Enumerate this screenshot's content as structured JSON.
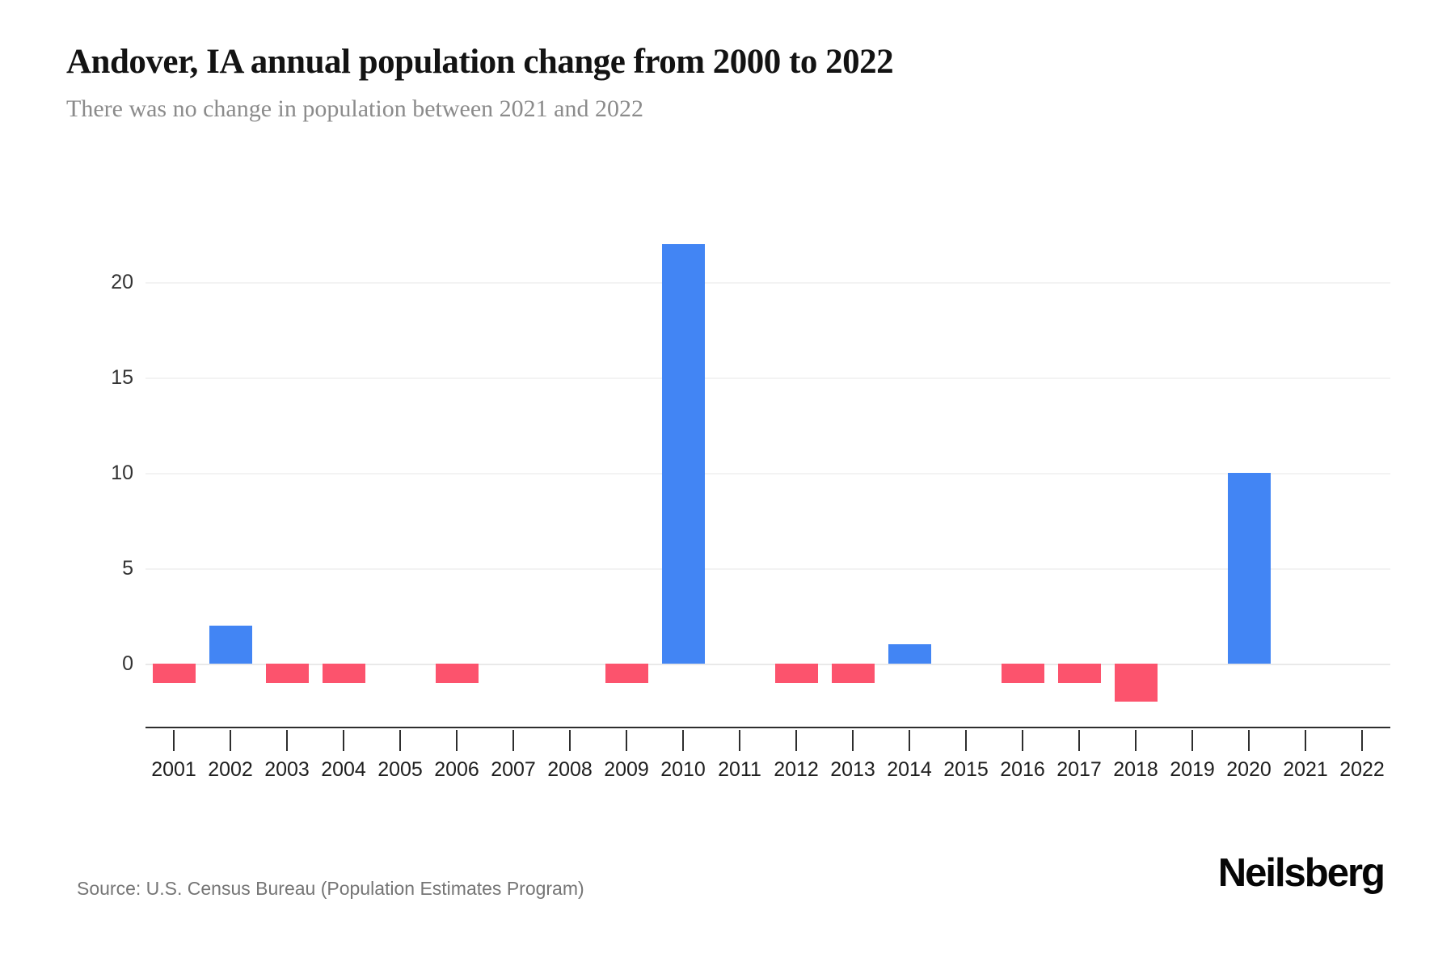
{
  "header": {
    "title": "Andover, IA annual population change from 2000 to 2022",
    "subtitle": "There was no change in population between 2021 and 2022"
  },
  "chart_data": {
    "type": "bar",
    "title": "Andover, IA annual population change from 2000 to 2022",
    "subtitle": "There was no change in population between 2021 and 2022",
    "categories": [
      "2001",
      "2002",
      "2003",
      "2004",
      "2005",
      "2006",
      "2007",
      "2008",
      "2009",
      "2010",
      "2011",
      "2012",
      "2013",
      "2014",
      "2015",
      "2016",
      "2017",
      "2018",
      "2019",
      "2020",
      "2021",
      "2022"
    ],
    "values": [
      -1,
      2,
      -1,
      -1,
      0,
      -1,
      0,
      0,
      -1,
      22,
      0,
      -1,
      -1,
      1,
      0,
      -1,
      -1,
      -2,
      0,
      10,
      0,
      0
    ],
    "xlabel": "",
    "ylabel": "",
    "yticks": [
      0,
      5,
      10,
      15,
      20
    ],
    "ylim": [
      -3.4,
      24
    ],
    "grid": true,
    "legend": "none",
    "colors": {
      "positive_bar": "#4285F4",
      "negative_bar": "#FC536D",
      "gridline": "#f3f3f3",
      "zero_line": "#e9e9e9",
      "axis": "#2e2e2e",
      "tick_label": "#1f1f1f"
    }
  },
  "footer": {
    "source": "Source: U.S. Census Bureau (Population Estimates Program)",
    "brand": "Neilsberg"
  }
}
